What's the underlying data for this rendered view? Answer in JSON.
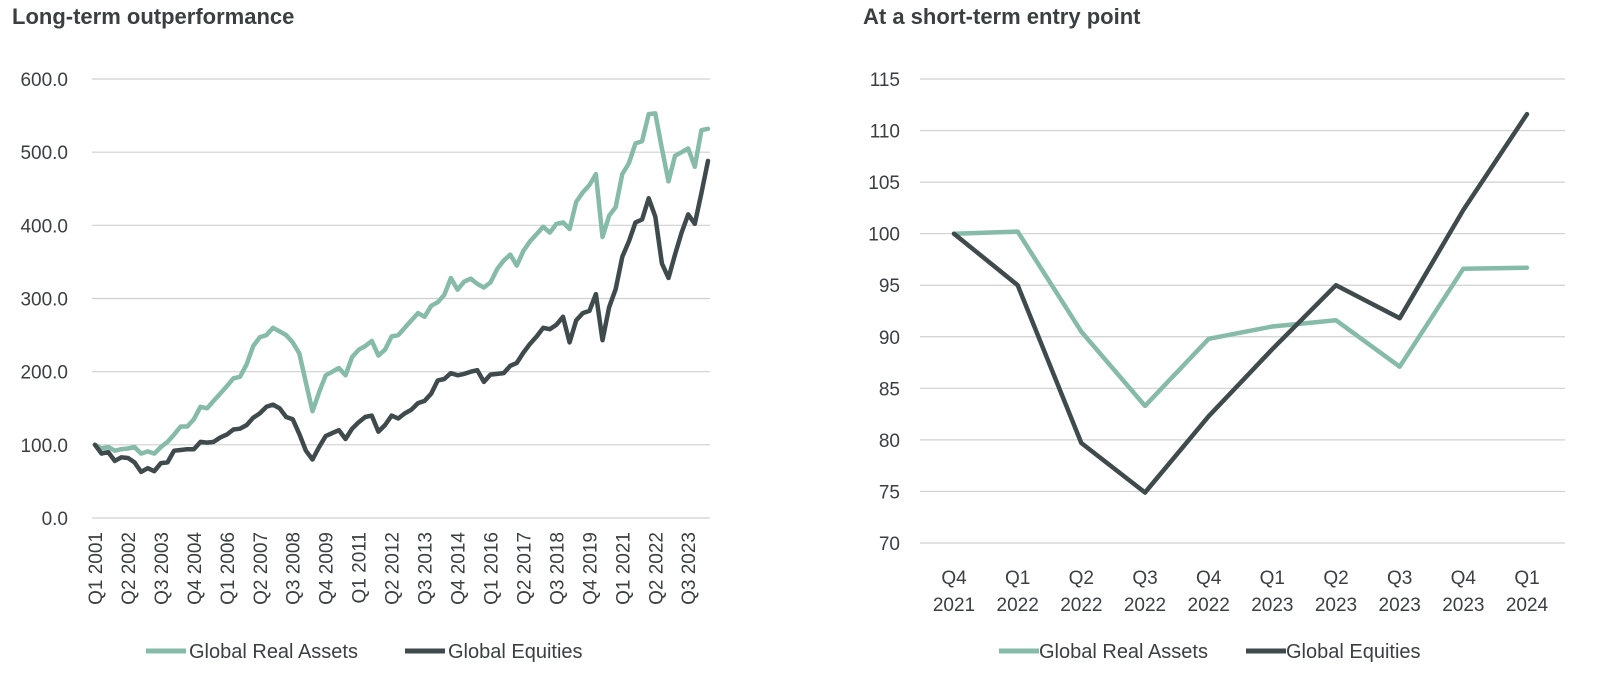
{
  "colors": {
    "real_assets": "#86bba9",
    "equities": "#3f4a4d",
    "grid": "#d0d0d0",
    "text": "#3a3f42"
  },
  "chart_data": [
    {
      "type": "line",
      "title": "Long-term outperformance",
      "ylim": [
        0,
        600
      ],
      "yticks": [
        "0.0",
        "100.0",
        "200.0",
        "300.0",
        "400.0",
        "500.0",
        "600.0"
      ],
      "xtick_labels": [
        "Q1 2001",
        "Q2 2002",
        "Q3 2003",
        "Q4 2004",
        "Q1 2006",
        "Q2 2007",
        "Q3 2008",
        "Q4 2009",
        "Q1 2011",
        "Q2 2012",
        "Q3 2013",
        "Q4 2014",
        "Q1 2016",
        "Q2 2017",
        "Q3 2018",
        "Q4 2019",
        "Q1 2021",
        "Q2 2022",
        "Q3 2023"
      ],
      "grid": true,
      "legend_position": "bottom",
      "series": [
        {
          "name": "Global Real Assets",
          "color": "#86bba9",
          "values": [
            100,
            95,
            97,
            92,
            94,
            95,
            97,
            88,
            91,
            88,
            97,
            104,
            114,
            125,
            125,
            135,
            152,
            150,
            160,
            170,
            180,
            191,
            193,
            210,
            235,
            247,
            250,
            260,
            255,
            250,
            240,
            225,
            185,
            146,
            172,
            195,
            200,
            205,
            195,
            220,
            230,
            235,
            242,
            222,
            230,
            248,
            250,
            260,
            270,
            280,
            275,
            290,
            295,
            305,
            328,
            312,
            323,
            327,
            320,
            315,
            322,
            340,
            352,
            360,
            345,
            365,
            378,
            388,
            398,
            390,
            402,
            404,
            395,
            432,
            445,
            455,
            470,
            384,
            413,
            425,
            470,
            485,
            512,
            515,
            552,
            553,
            505,
            460,
            495,
            500,
            505,
            480,
            530,
            532
          ]
        },
        {
          "name": "Global Equities",
          "color": "#3f4a4d",
          "values": [
            100,
            88,
            90,
            78,
            83,
            82,
            76,
            63,
            68,
            64,
            75,
            76,
            92,
            93,
            94,
            94,
            104,
            103,
            104,
            110,
            114,
            121,
            122,
            127,
            137,
            143,
            152,
            155,
            150,
            138,
            135,
            115,
            92,
            80,
            97,
            112,
            116,
            120,
            108,
            122,
            131,
            138,
            140,
            118,
            127,
            140,
            136,
            143,
            148,
            157,
            160,
            170,
            188,
            190,
            198,
            195,
            197,
            200,
            202,
            186,
            196,
            197,
            198,
            208,
            212,
            226,
            238,
            248,
            260,
            258,
            264,
            275,
            240,
            270,
            280,
            283,
            306,
            243,
            288,
            313,
            357,
            378,
            404,
            408,
            437,
            412,
            348,
            328,
            360,
            390,
            415,
            402,
            444,
            488
          ]
        }
      ]
    },
    {
      "type": "line",
      "title": "At a short-term entry point",
      "ylim": [
        70,
        115
      ],
      "yticks": [
        "70",
        "75",
        "80",
        "85",
        "90",
        "95",
        "100",
        "105",
        "110",
        "115"
      ],
      "categories": [
        "Q4 2021",
        "Q1 2022",
        "Q2 2022",
        "Q3 2022",
        "Q4 2022",
        "Q1 2023",
        "Q2 2023",
        "Q3 2023",
        "Q4 2023",
        "Q1 2024"
      ],
      "category_labels": [
        [
          "Q4",
          "2021"
        ],
        [
          "Q1",
          "2022"
        ],
        [
          "Q2",
          "2022"
        ],
        [
          "Q3",
          "2022"
        ],
        [
          "Q4",
          "2022"
        ],
        [
          "Q1",
          "2023"
        ],
        [
          "Q2",
          "2023"
        ],
        [
          "Q3",
          "2023"
        ],
        [
          "Q4",
          "2023"
        ],
        [
          "Q1",
          "2024"
        ]
      ],
      "grid": true,
      "legend_position": "bottom",
      "series": [
        {
          "name": "Global Real Assets",
          "color": "#86bba9",
          "values": [
            100.0,
            100.2,
            90.5,
            83.3,
            89.8,
            91.0,
            91.6,
            87.1,
            96.6,
            96.7
          ]
        },
        {
          "name": "Global Equities",
          "color": "#3f4a4d",
          "values": [
            100.0,
            95.0,
            79.7,
            74.9,
            82.3,
            88.8,
            95.0,
            91.8,
            102.3,
            111.6
          ]
        }
      ]
    }
  ]
}
